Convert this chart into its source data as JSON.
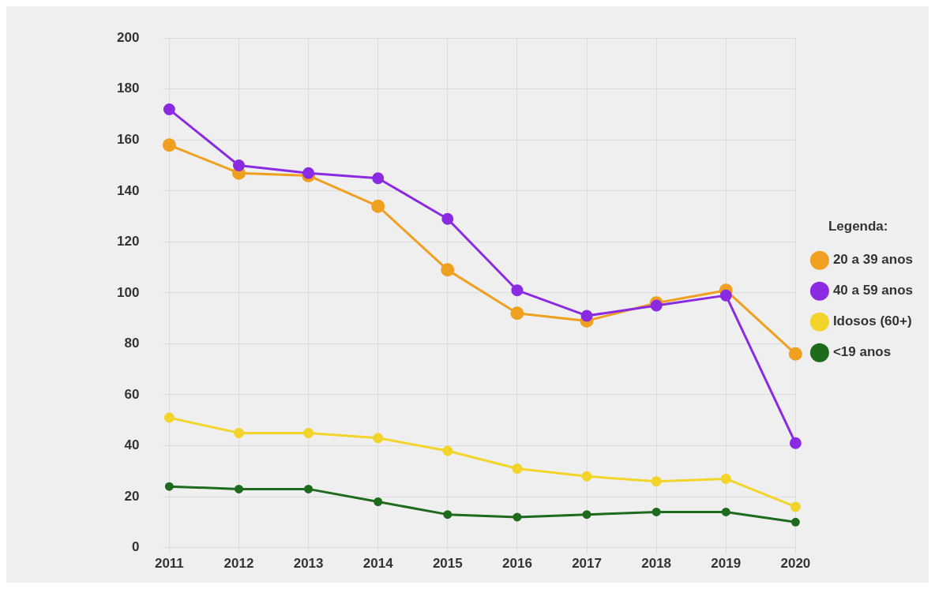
{
  "chart_data": {
    "type": "line",
    "categories": [
      "2011",
      "2012",
      "2013",
      "2014",
      "2015",
      "2016",
      "2017",
      "2018",
      "2019",
      "2020"
    ],
    "series": [
      {
        "name": "20 a 39 anos",
        "color": "#f0a020",
        "values": [
          158,
          147,
          146,
          134,
          109,
          92,
          89,
          96,
          101,
          76
        ]
      },
      {
        "name": "40 a 59 anos",
        "color": "#8a2be2",
        "values": [
          172,
          150,
          147,
          145,
          129,
          101,
          91,
          95,
          99,
          41
        ]
      },
      {
        "name": "Idosos (60+)",
        "color": "#f2d42a",
        "values": [
          51,
          45,
          45,
          43,
          38,
          31,
          28,
          26,
          27,
          16
        ]
      },
      {
        "name": "<19 anos",
        "color": "#1e6b1e",
        "values": [
          24,
          23,
          23,
          18,
          13,
          12,
          13,
          14,
          14,
          10
        ]
      }
    ],
    "ylim": [
      0,
      200
    ],
    "yticks": [
      0,
      20,
      40,
      60,
      80,
      100,
      120,
      140,
      160,
      180,
      200
    ],
    "grid": true,
    "legend": "right",
    "legend_title": "Legenda:",
    "marker": "circle",
    "line_style": "solid"
  }
}
